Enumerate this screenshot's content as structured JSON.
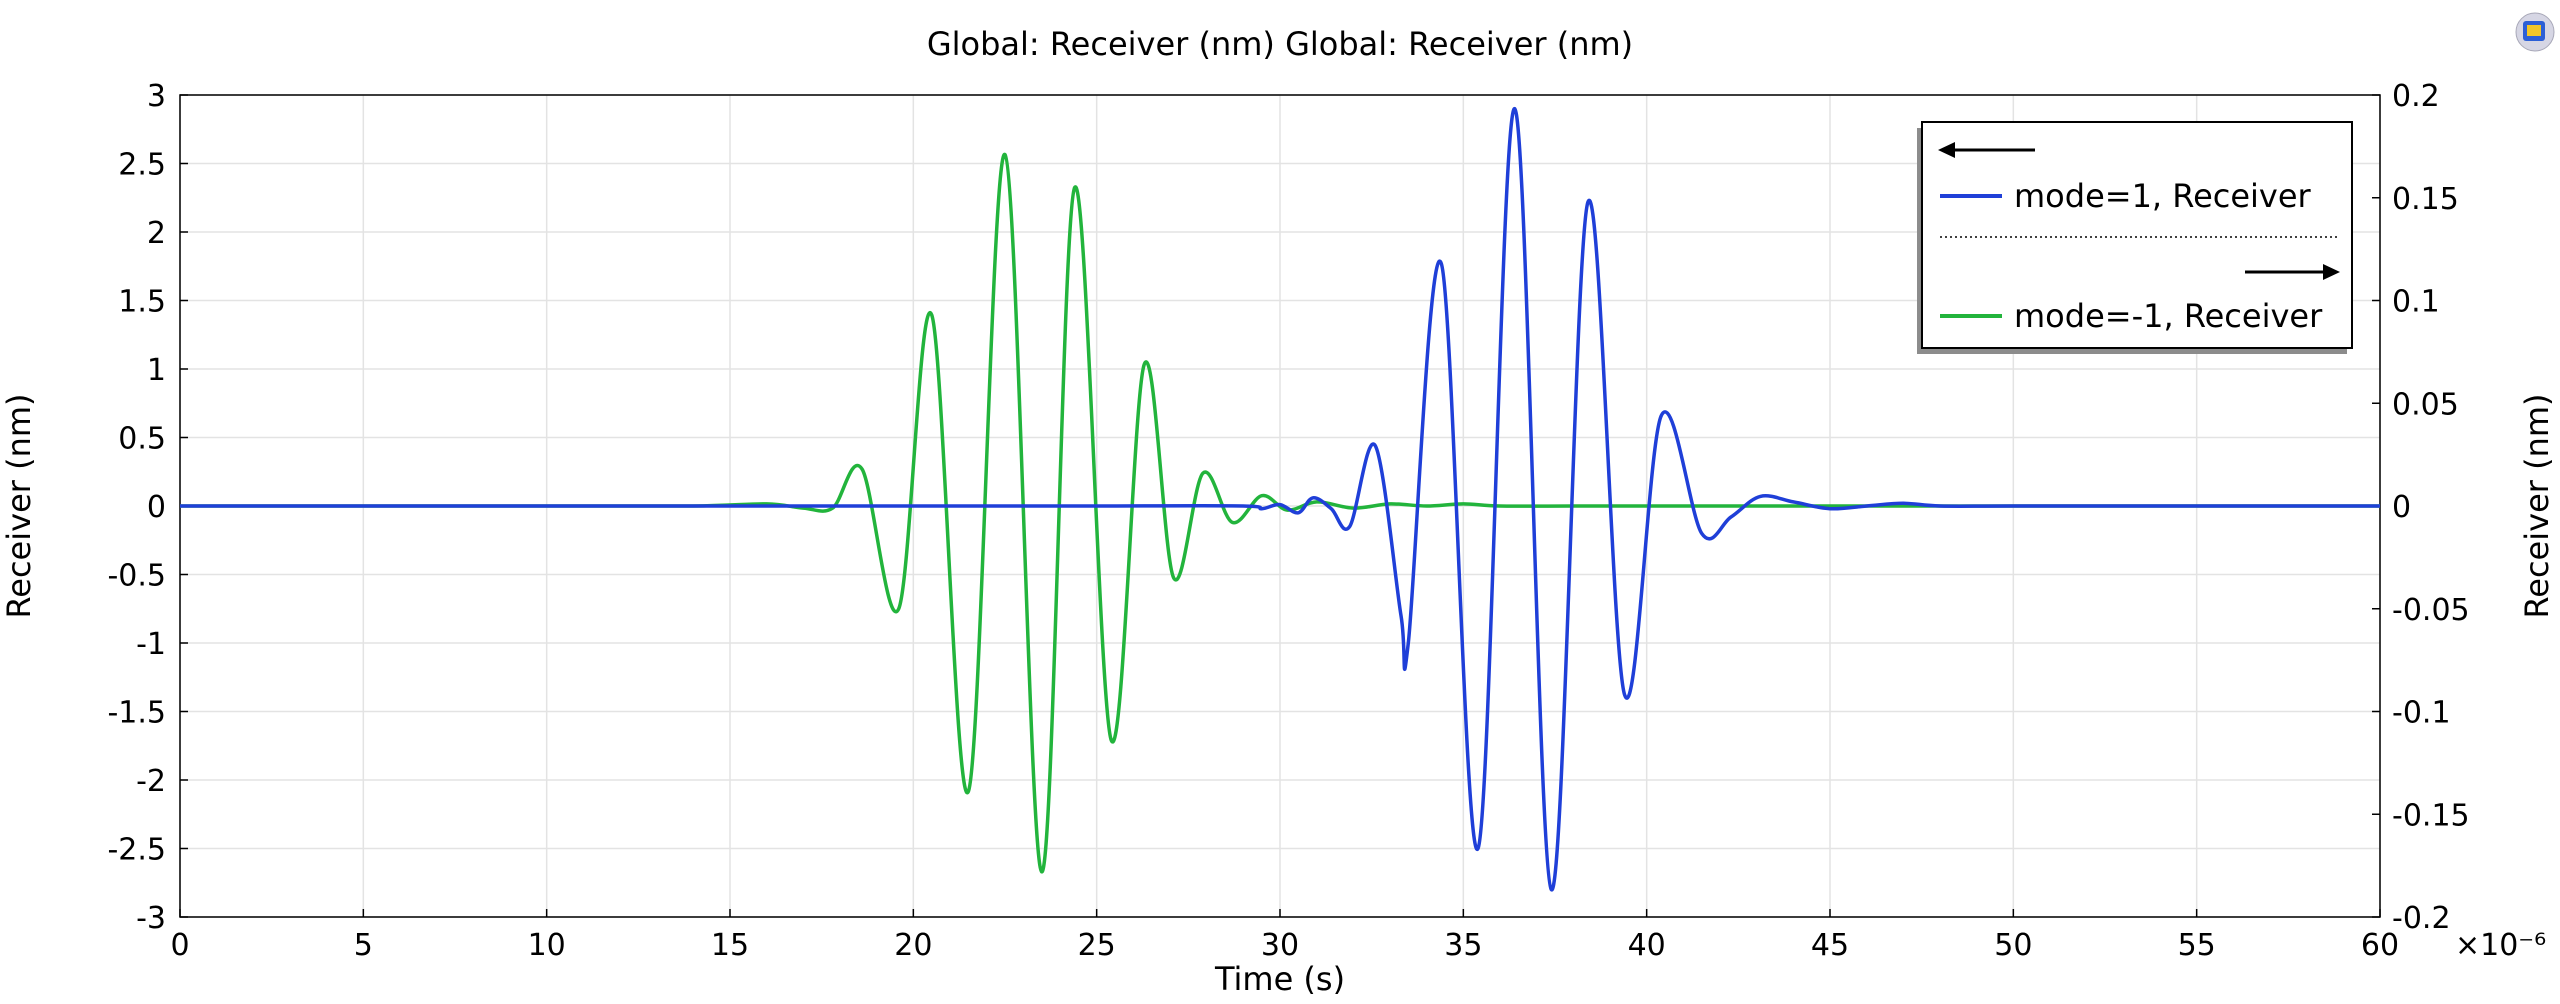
{
  "chart_data": {
    "type": "line",
    "title": "Global: Receiver (nm)  Global: Receiver (nm)",
    "xlabel": "Time (s)",
    "ylabel_left": "Receiver (nm)",
    "ylabel_right": "Receiver (nm)",
    "x_exponent_label": "×10⁻⁶",
    "xlim": [
      0,
      60
    ],
    "ylim_left": [
      -3,
      3
    ],
    "ylim_right": [
      -0.2,
      0.2
    ],
    "x_ticks": [
      "0",
      "5",
      "10",
      "15",
      "20",
      "25",
      "30",
      "35",
      "40",
      "45",
      "50",
      "55",
      "60"
    ],
    "y_ticks_left": [
      "3",
      "2.5",
      "2",
      "1.5",
      "1",
      "0.5",
      "0",
      "-0.5",
      "-1",
      "-1.5",
      "-2",
      "-2.5",
      "-3"
    ],
    "y_ticks_right": [
      "0.2",
      "0.15",
      "0.1",
      "0.05",
      "0",
      "-0.05",
      "-0.1",
      "-0.15",
      "-0.2"
    ],
    "grid": true,
    "legend_position": "top-right",
    "series": [
      {
        "name": "mode=1, Receiver",
        "axis": "left",
        "color": "#1f3fd8",
        "x": [
          0,
          5,
          10,
          15,
          20,
          25,
          29,
          29.5,
          30,
          30.5,
          30.9,
          31.4,
          31.9,
          32.6,
          33.3,
          33.5,
          34.4,
          35.4,
          36.4,
          37.4,
          38.4,
          39.4,
          40.4,
          41.5,
          42.3,
          43.1,
          44,
          45,
          46,
          47,
          48,
          50,
          55,
          60
        ],
        "y": [
          0,
          0,
          0,
          0,
          0,
          0,
          0,
          -0.02,
          0.01,
          -0.05,
          0.06,
          -0.02,
          -0.15,
          0.44,
          -0.8,
          -1.0,
          1.77,
          -2.5,
          2.9,
          -2.8,
          2.22,
          -1.38,
          0.66,
          -0.2,
          -0.08,
          0.07,
          0.03,
          -0.02,
          0,
          0.02,
          0,
          0,
          0,
          0
        ]
      },
      {
        "name": "mode=-1, Receiver",
        "axis": "right",
        "color": "#22b43c",
        "x": [
          0,
          5,
          10,
          14,
          16,
          17,
          17.8,
          18.6,
          19.6,
          20.5,
          21.5,
          22.5,
          23.5,
          24.4,
          25.4,
          26.3,
          27.1,
          27.9,
          28.7,
          29.5,
          30.2,
          31,
          32,
          33,
          34,
          35,
          36,
          38,
          40,
          45,
          50,
          60
        ],
        "y": [
          0,
          0,
          0,
          0,
          0.001,
          -0.001,
          -0.001,
          0.018,
          -0.05,
          0.093,
          -0.139,
          0.171,
          -0.178,
          0.155,
          -0.114,
          0.069,
          -0.035,
          0.016,
          -0.008,
          0.005,
          -0.002,
          0.002,
          -0.001,
          0.001,
          0,
          0.001,
          0,
          0,
          0,
          0,
          0,
          0
        ]
      }
    ]
  }
}
